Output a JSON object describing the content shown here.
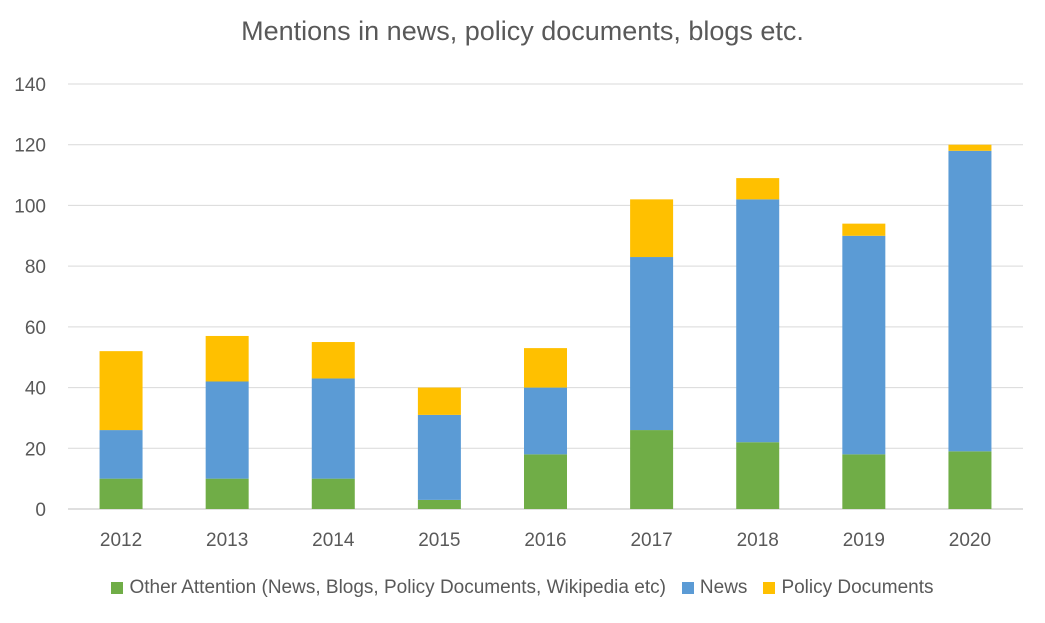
{
  "chart_data": {
    "type": "bar",
    "stacked": true,
    "title": "Mentions in news, policy documents, blogs etc.",
    "xlabel": "",
    "ylabel": "",
    "categories": [
      "2012",
      "2013",
      "2014",
      "2015",
      "2016",
      "2017",
      "2018",
      "2019",
      "2020"
    ],
    "ylim": [
      0,
      140
    ],
    "yticks": [
      0,
      20,
      40,
      60,
      80,
      100,
      120,
      140
    ],
    "grid": true,
    "legend_position": "bottom",
    "series": [
      {
        "name": "Other Attention (News, Blogs, Policy Documents, Wikipedia etc)",
        "color": "#70ad47",
        "values": [
          10,
          10,
          10,
          3,
          18,
          26,
          22,
          18,
          19
        ]
      },
      {
        "name": "News",
        "color": "#5b9bd5",
        "values": [
          16,
          32,
          33,
          28,
          22,
          57,
          80,
          72,
          99
        ]
      },
      {
        "name": "Policy Documents",
        "color": "#ffc000",
        "values": [
          26,
          15,
          12,
          9,
          13,
          19,
          7,
          4,
          2
        ]
      }
    ]
  },
  "colors": {
    "grid": "#d9d9d9",
    "axis": "#bfbfbf",
    "text": "#595959"
  }
}
